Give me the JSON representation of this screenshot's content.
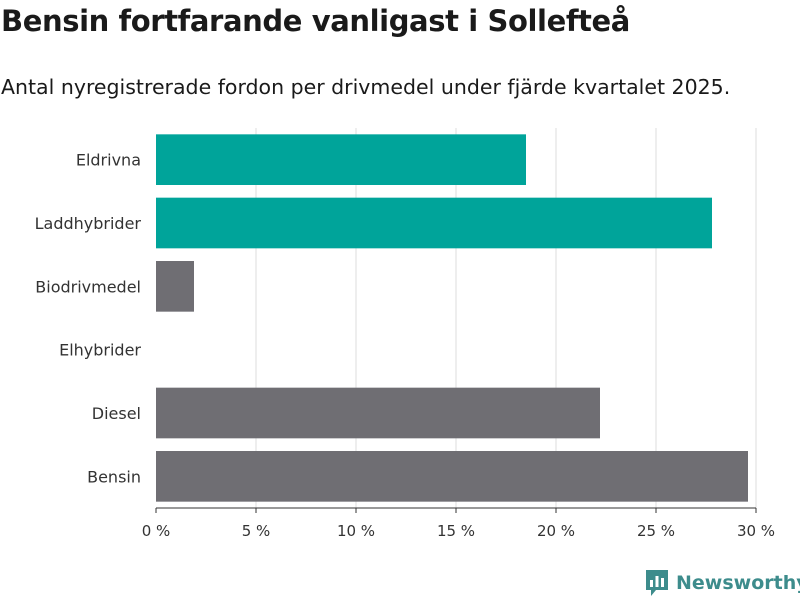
{
  "header": {
    "title": "Bensin fortfarande vanligast i Sollefteå",
    "subtitle": "Antal nyregistrerade fordon per drivmedel under fjärde kvartalet 2025."
  },
  "chart_data": {
    "type": "bar",
    "orientation": "horizontal",
    "title": "Bensin fortfarande vanligast i Sollefteå",
    "subtitle": "Antal nyregistrerade fordon per drivmedel under fjärde kvartalet 2025.",
    "categories": [
      "Eldrivna",
      "Laddhybrider",
      "Biodrivmedel",
      "Elhybrider",
      "Diesel",
      "Bensin"
    ],
    "values": [
      18.5,
      27.8,
      1.9,
      0,
      22.2,
      29.6
    ],
    "colors": [
      "#00a49a",
      "#00a49a",
      "#6f6e73",
      "#6f6e73",
      "#6f6e73",
      "#6f6e73"
    ],
    "xlim": [
      0,
      30
    ],
    "xticks": [
      0,
      5,
      10,
      15,
      20,
      25,
      30
    ],
    "xtick_labels": [
      "0 %",
      "5 %",
      "10 %",
      "15 %",
      "20 %",
      "25 %",
      "30 %"
    ],
    "xlabel": "",
    "ylabel": "",
    "grid": true
  },
  "branding": {
    "name": "Newsworthy",
    "icon": "newsworthy-logo-icon",
    "color": "#3d8c8c"
  }
}
